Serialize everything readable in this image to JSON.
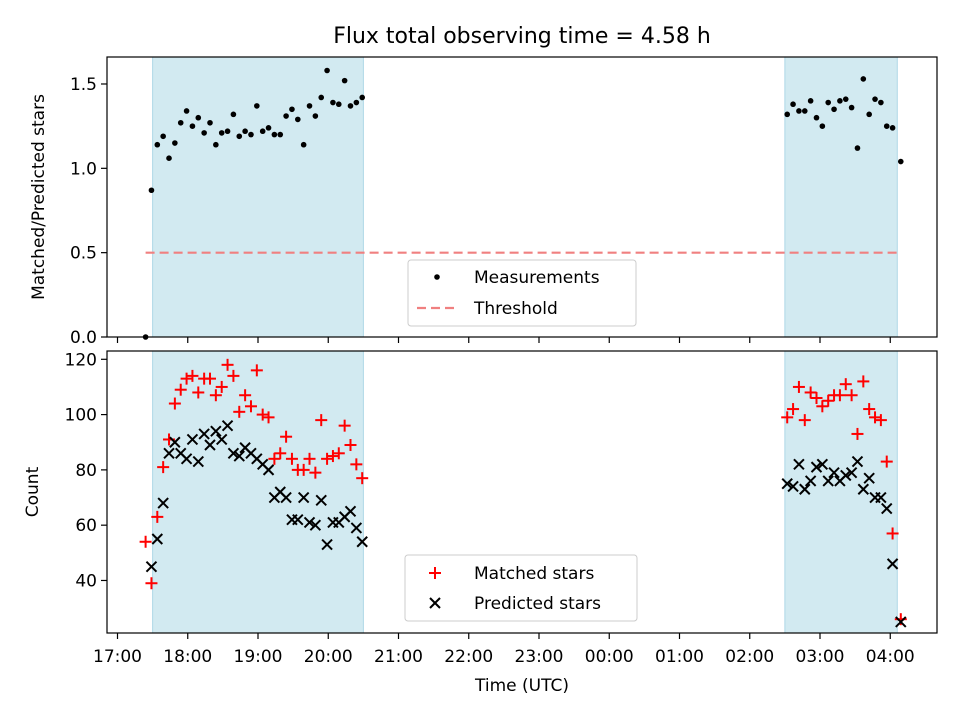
{
  "chart_data": {
    "type": "scatter",
    "title": "Flux total observing time = 4.58 h",
    "xlabel": "Time (UTC)",
    "x_tick_labels": [
      "17:00",
      "18:00",
      "19:00",
      "20:00",
      "21:00",
      "22:00",
      "23:00",
      "00:00",
      "01:00",
      "02:00",
      "03:00",
      "04:00"
    ],
    "colors": {
      "shade": "#add8e6",
      "threshold": "#f08080",
      "matched": "#ff0000",
      "predicted": "#000000",
      "measurements": "#000000"
    },
    "shaded_intervals": [
      [
        "17:30",
        "20:30"
      ],
      [
        "02:30",
        "04:06"
      ]
    ],
    "top_panel": {
      "ylabel": "Matched/Predicted stars",
      "ylim": [
        0,
        1.66
      ],
      "yticks": [
        "0.0",
        "0.5",
        "1.0",
        "1.5"
      ],
      "threshold": 0.5,
      "legend_position": "lower center",
      "legend": [
        "Measurements",
        "Threshold"
      ],
      "series": [
        {
          "name": "Measurements",
          "marker": "dot",
          "points": [
            [
              "17:24",
              0.0
            ],
            [
              "17:29",
              0.87
            ],
            [
              "17:34",
              1.14
            ],
            [
              "17:39",
              1.19
            ],
            [
              "17:44",
              1.06
            ],
            [
              "17:49",
              1.15
            ],
            [
              "17:54",
              1.27
            ],
            [
              "17:59",
              1.34
            ],
            [
              "18:04",
              1.25
            ],
            [
              "18:09",
              1.3
            ],
            [
              "18:14",
              1.21
            ],
            [
              "18:19",
              1.27
            ],
            [
              "18:24",
              1.14
            ],
            [
              "18:29",
              1.21
            ],
            [
              "18:34",
              1.22
            ],
            [
              "18:39",
              1.32
            ],
            [
              "18:44",
              1.19
            ],
            [
              "18:49",
              1.22
            ],
            [
              "18:54",
              1.2
            ],
            [
              "18:59",
              1.37
            ],
            [
              "19:04",
              1.22
            ],
            [
              "19:09",
              1.24
            ],
            [
              "19:14",
              1.2
            ],
            [
              "19:19",
              1.2
            ],
            [
              "19:24",
              1.31
            ],
            [
              "19:29",
              1.35
            ],
            [
              "19:34",
              1.29
            ],
            [
              "19:39",
              1.14
            ],
            [
              "19:44",
              1.37
            ],
            [
              "19:49",
              1.31
            ],
            [
              "19:54",
              1.42
            ],
            [
              "19:59",
              1.58
            ],
            [
              "20:04",
              1.39
            ],
            [
              "20:09",
              1.38
            ],
            [
              "20:14",
              1.52
            ],
            [
              "20:19",
              1.37
            ],
            [
              "20:24",
              1.39
            ],
            [
              "20:29",
              1.42
            ],
            [
              "02:32",
              1.32
            ],
            [
              "02:37",
              1.38
            ],
            [
              "02:42",
              1.34
            ],
            [
              "02:47",
              1.34
            ],
            [
              "02:52",
              1.4
            ],
            [
              "02:57",
              1.3
            ],
            [
              "03:02",
              1.25
            ],
            [
              "03:07",
              1.39
            ],
            [
              "03:12",
              1.35
            ],
            [
              "03:17",
              1.4
            ],
            [
              "03:22",
              1.41
            ],
            [
              "03:27",
              1.36
            ],
            [
              "03:32",
              1.12
            ],
            [
              "03:37",
              1.53
            ],
            [
              "03:42",
              1.32
            ],
            [
              "03:47",
              1.41
            ],
            [
              "03:52",
              1.39
            ],
            [
              "03:57",
              1.25
            ],
            [
              "04:02",
              1.24
            ],
            [
              "04:09",
              1.04
            ]
          ]
        }
      ]
    },
    "bottom_panel": {
      "ylabel": "Count",
      "ylim": [
        21,
        123
      ],
      "yticks": [
        "40",
        "60",
        "80",
        "100",
        "120"
      ],
      "legend_position": "lower center",
      "legend": [
        "Matched stars",
        "Predicted stars"
      ],
      "series": [
        {
          "name": "Matched stars",
          "marker": "plus",
          "points": [
            [
              "17:24",
              54
            ],
            [
              "17:29",
              39
            ],
            [
              "17:34",
              63
            ],
            [
              "17:39",
              81
            ],
            [
              "17:44",
              91
            ],
            [
              "17:49",
              104
            ],
            [
              "17:54",
              109
            ],
            [
              "17:59",
              113
            ],
            [
              "18:04",
              114
            ],
            [
              "18:09",
              108
            ],
            [
              "18:14",
              113
            ],
            [
              "18:19",
              113
            ],
            [
              "18:24",
              107
            ],
            [
              "18:29",
              110
            ],
            [
              "18:34",
              118
            ],
            [
              "18:39",
              114
            ],
            [
              "18:44",
              101
            ],
            [
              "18:49",
              107
            ],
            [
              "18:54",
              103
            ],
            [
              "18:59",
              116
            ],
            [
              "19:04",
              100
            ],
            [
              "19:09",
              99
            ],
            [
              "19:14",
              84
            ],
            [
              "19:19",
              86
            ],
            [
              "19:24",
              92
            ],
            [
              "19:29",
              84
            ],
            [
              "19:34",
              80
            ],
            [
              "19:39",
              80
            ],
            [
              "19:44",
              84
            ],
            [
              "19:49",
              79
            ],
            [
              "19:54",
              98
            ],
            [
              "19:59",
              84
            ],
            [
              "20:04",
              85
            ],
            [
              "20:09",
              86
            ],
            [
              "20:14",
              96
            ],
            [
              "20:19",
              89
            ],
            [
              "20:24",
              82
            ],
            [
              "20:29",
              77
            ],
            [
              "02:32",
              99
            ],
            [
              "02:37",
              102
            ],
            [
              "02:42",
              110
            ],
            [
              "02:47",
              98
            ],
            [
              "02:52",
              108
            ],
            [
              "02:57",
              106
            ],
            [
              "03:02",
              103
            ],
            [
              "03:07",
              105
            ],
            [
              "03:12",
              107
            ],
            [
              "03:17",
              107
            ],
            [
              "03:22",
              111
            ],
            [
              "03:27",
              107
            ],
            [
              "03:32",
              93
            ],
            [
              "03:37",
              112
            ],
            [
              "03:42",
              102
            ],
            [
              "03:47",
              99
            ],
            [
              "03:52",
              98
            ],
            [
              "03:57",
              83
            ],
            [
              "04:02",
              57
            ],
            [
              "04:09",
              26
            ]
          ]
        },
        {
          "name": "Predicted stars",
          "marker": "x",
          "points": [
            [
              "17:29",
              45
            ],
            [
              "17:34",
              55
            ],
            [
              "17:39",
              68
            ],
            [
              "17:44",
              86
            ],
            [
              "17:49",
              90
            ],
            [
              "17:54",
              86
            ],
            [
              "17:59",
              84
            ],
            [
              "18:04",
              91
            ],
            [
              "18:09",
              83
            ],
            [
              "18:14",
              93
            ],
            [
              "18:19",
              89
            ],
            [
              "18:24",
              94
            ],
            [
              "18:29",
              91
            ],
            [
              "18:34",
              96
            ],
            [
              "18:39",
              86
            ],
            [
              "18:44",
              85
            ],
            [
              "18:49",
              88
            ],
            [
              "18:54",
              86
            ],
            [
              "18:59",
              84
            ],
            [
              "19:04",
              82
            ],
            [
              "19:09",
              80
            ],
            [
              "19:14",
              70
            ],
            [
              "19:19",
              72
            ],
            [
              "19:24",
              70
            ],
            [
              "19:29",
              62
            ],
            [
              "19:34",
              62
            ],
            [
              "19:39",
              70
            ],
            [
              "19:44",
              61
            ],
            [
              "19:49",
              60
            ],
            [
              "19:54",
              69
            ],
            [
              "19:59",
              53
            ],
            [
              "20:04",
              61
            ],
            [
              "20:09",
              61
            ],
            [
              "20:14",
              63
            ],
            [
              "20:19",
              65
            ],
            [
              "20:24",
              59
            ],
            [
              "20:29",
              54
            ],
            [
              "02:32",
              75
            ],
            [
              "02:37",
              74
            ],
            [
              "02:42",
              82
            ],
            [
              "02:47",
              73
            ],
            [
              "02:52",
              76
            ],
            [
              "02:57",
              81
            ],
            [
              "03:02",
              82
            ],
            [
              "03:07",
              76
            ],
            [
              "03:12",
              79
            ],
            [
              "03:17",
              76
            ],
            [
              "03:22",
              78
            ],
            [
              "03:27",
              79
            ],
            [
              "03:32",
              83
            ],
            [
              "03:37",
              73
            ],
            [
              "03:42",
              77
            ],
            [
              "03:47",
              70
            ],
            [
              "03:52",
              70
            ],
            [
              "03:57",
              66
            ],
            [
              "04:02",
              46
            ],
            [
              "04:09",
              25
            ]
          ]
        }
      ]
    }
  }
}
